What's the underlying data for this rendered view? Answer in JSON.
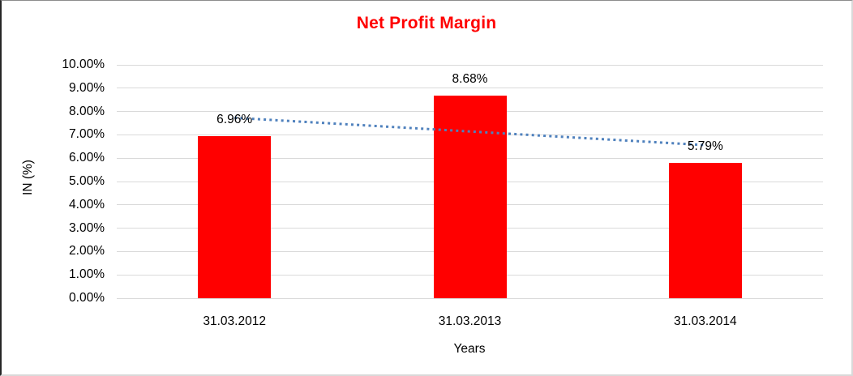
{
  "chart_data": {
    "type": "bar",
    "title": "Net Profit Margin",
    "categories": [
      "31.03.2012",
      "31.03.2013",
      "31.03.2014"
    ],
    "values": [
      6.96,
      8.68,
      5.79
    ],
    "data_labels": [
      "6.96%",
      "8.68%",
      "5.79%"
    ],
    "xlabel": "Years",
    "ylabel": "IN (%)",
    "ylim": [
      0,
      10
    ],
    "ytick_step": 1,
    "ytick_labels": [
      "0.00%",
      "1.00%",
      "2.00%",
      "3.00%",
      "4.00%",
      "5.00%",
      "6.00%",
      "7.00%",
      "8.00%",
      "9.00%",
      "10.00%"
    ],
    "grid": true,
    "legend": "none",
    "colors": {
      "bar": "#FF0000",
      "title": "#FF0000",
      "gridline": "#D9D9D9",
      "trendline": "#4F81BD",
      "text": "#000000"
    },
    "trendline": {
      "type": "linear",
      "style": "dotted",
      "start_value": 7.73,
      "end_value": 6.56
    }
  }
}
